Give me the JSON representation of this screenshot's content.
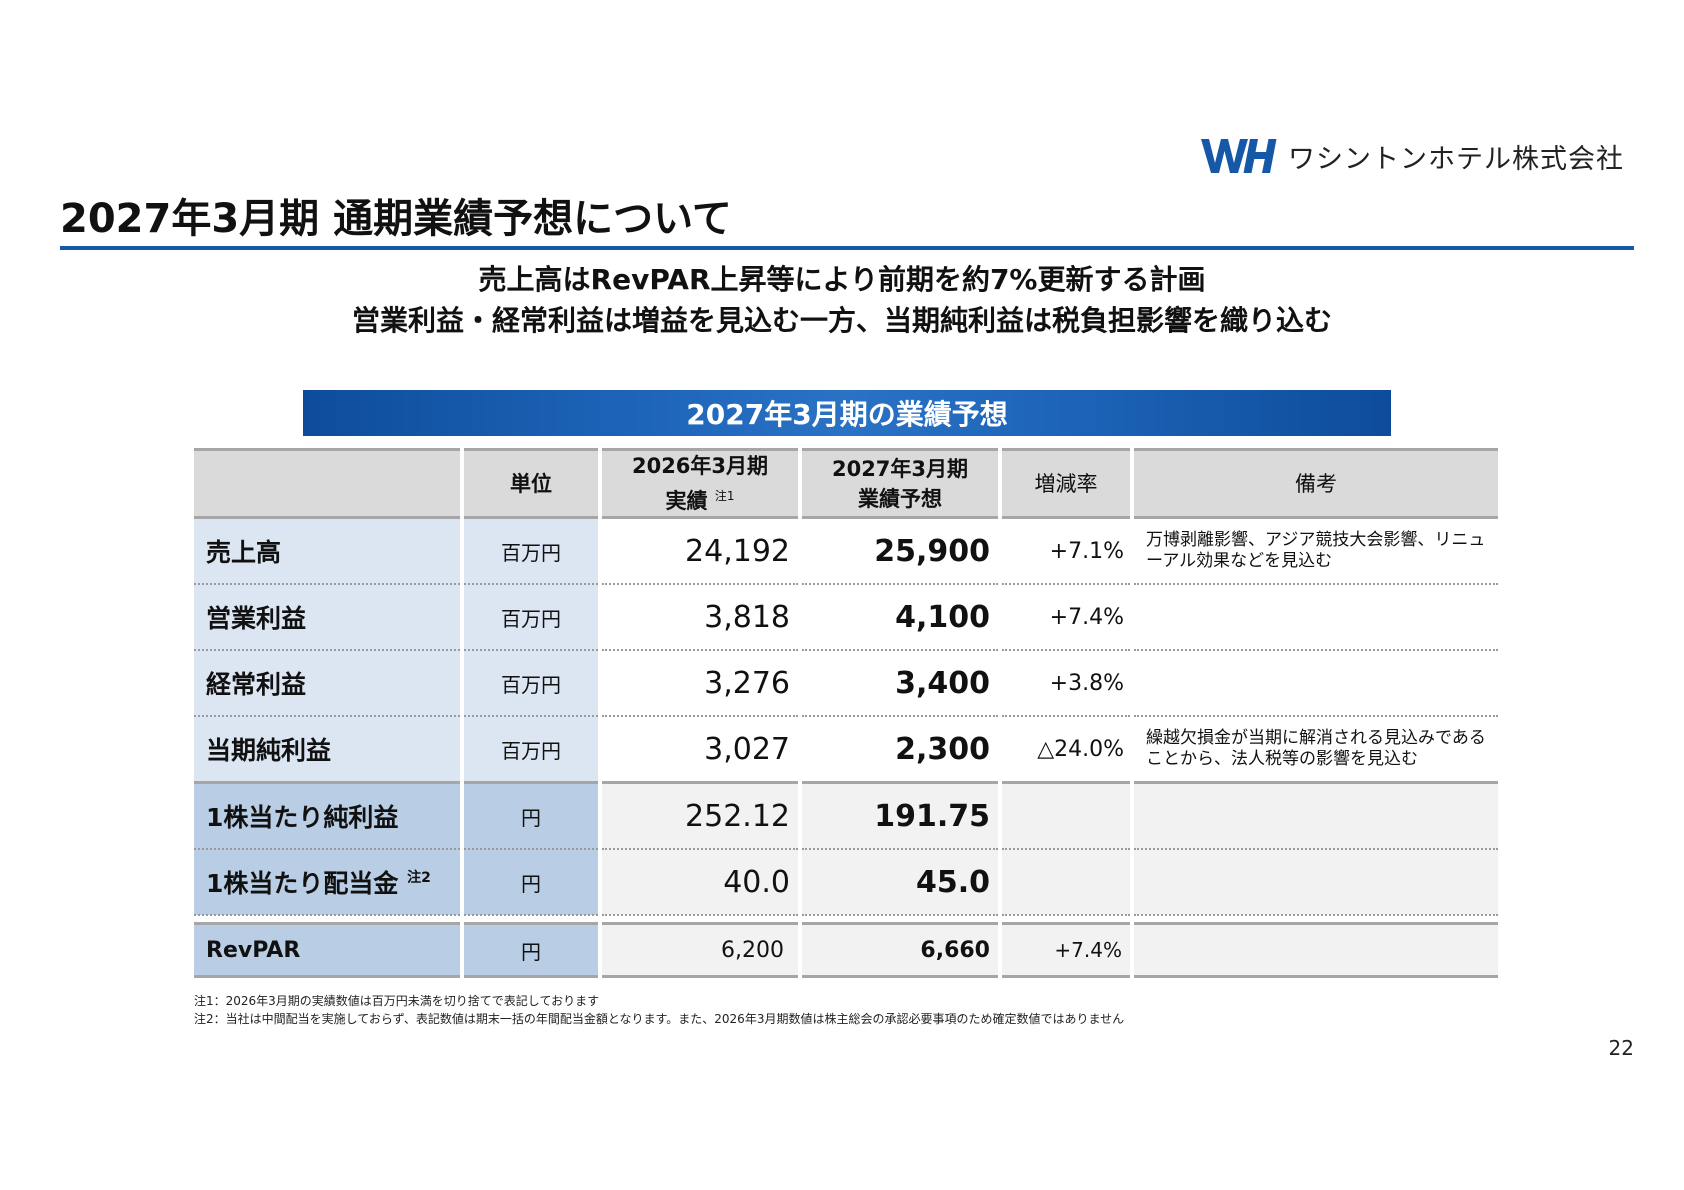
{
  "logo": {
    "mark": "WH",
    "company": "ワシントンホテル株式会社",
    "brand_color": "#1558a8"
  },
  "title": "2027年3月期 通期業績予想について",
  "headline": [
    "売上高はRevPAR上昇等により前期を約7%更新する計画",
    "営業利益・経常利益は増益を見込む一方、当期純利益は税負担影響を織り込む"
  ],
  "banner": "2027年3月期の業績予想",
  "table": {
    "headers": {
      "unit": "単位",
      "fy2026_line1": "2026年3月期",
      "fy2026_line2": "実績",
      "fy2026_note": "注1",
      "fy2027_line1": "2027年3月期",
      "fy2027_line2": "業績予想",
      "change": "増減率",
      "remarks": "備考"
    },
    "rows": [
      {
        "name": "売上高",
        "unit": "百万円",
        "fy2026": "24,192",
        "fy2027": "25,900",
        "change": "+7.1%",
        "note": "万博剥離影響、アジア競技大会影響、リニューアル効果などを見込む"
      },
      {
        "name": "営業利益",
        "unit": "百万円",
        "fy2026": "3,818",
        "fy2027": "4,100",
        "change": "+7.4%",
        "note": ""
      },
      {
        "name": "経常利益",
        "unit": "百万円",
        "fy2026": "3,276",
        "fy2027": "3,400",
        "change": "+3.8%",
        "note": ""
      },
      {
        "name": "当期純利益",
        "unit": "百万円",
        "fy2026": "3,027",
        "fy2027": "2,300",
        "change": "△24.0%",
        "note": "繰越欠損金が当期に解消される見込みであることから、法人税等の影響を見込む"
      },
      {
        "name": "1株当たり純利益",
        "unit": "円",
        "fy2026": "252.12",
        "fy2027": "191.75",
        "change": "",
        "note": ""
      },
      {
        "name": "1株当たり配当金",
        "name_note": "注2",
        "unit": "円",
        "fy2026": "40.0",
        "fy2027": "45.0",
        "change": "",
        "note": ""
      }
    ],
    "revpar": {
      "name": "RevPAR",
      "unit": "円",
      "fy2026": "6,200",
      "fy2027": "6,660",
      "change": "+7.4%"
    }
  },
  "footnotes": [
    "注1：2026年3月期の実績数値は百万円未満を切り捨てで表記しております",
    "注2：当社は中間配当を実施しておらず、表記数値は期末一括の年間配当金額となります。また、2026年3月期数値は株主総会の承認必要事項のため確定数値ではありません"
  ],
  "page_number": "22"
}
